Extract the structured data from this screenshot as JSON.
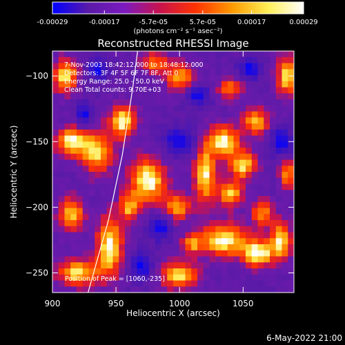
{
  "colorbar": {
    "tick_labels": [
      "-0.00029",
      "-0.00017",
      "-5.7e-05",
      "5.7e-05",
      "0.00017",
      "0.00029"
    ],
    "tick_values": [
      -0.00029,
      -0.00017,
      -5.7e-05,
      5.7e-05,
      0.00017,
      0.00029
    ],
    "range": [
      -0.00029,
      0.00029
    ],
    "units_label": "(photons cm⁻² s⁻¹ asec⁻²)",
    "colors": [
      "#0000ff",
      "#5a1aa8",
      "#7b1ac0",
      "#c8124e",
      "#ff3300",
      "#ff9900",
      "#ffee55",
      "#ffffff"
    ]
  },
  "chart_data": {
    "type": "heatmap",
    "title": "Reconstructed RHESSI Image",
    "xlabel": "Heliocentric X (arcsec)",
    "ylabel": "Heliocentric Y (arcsec)",
    "xlim": [
      900,
      1090
    ],
    "ylim": [
      -265,
      -81
    ],
    "x_ticks": [
      900,
      950,
      1000,
      1050
    ],
    "y_ticks": [
      -100,
      -150,
      -200,
      -250
    ],
    "x_tick_labels": [
      "900",
      "950",
      "1000",
      "1050"
    ],
    "y_tick_labels": [
      "−100",
      "−150",
      "−200",
      "−250"
    ],
    "annotations": [
      "7-Nov-2003 18:42:12.000 to 18:48:12.000",
      "Detectors: 3F 4F 5F 6F 7F 8F, Att 0",
      "Energy Range: 25.0 - 50.0 keV",
      "Clean  Total counts: 9.70E+03"
    ],
    "peak_label": "Position of Peak = [1060,-235]",
    "limb_points": [
      [
        928,
        -265
      ],
      [
        944,
        -210
      ],
      [
        955,
        -160
      ],
      [
        963,
        -110
      ],
      [
        967,
        -81
      ]
    ],
    "blobs": [
      {
        "x": 910,
        "y": -100,
        "sx": 10,
        "sy": 12,
        "a": 0.9
      },
      {
        "x": 915,
        "y": -150,
        "sx": 12,
        "sy": 10,
        "a": 0.95
      },
      {
        "x": 935,
        "y": -158,
        "sx": 12,
        "sy": 16,
        "a": 0.85
      },
      {
        "x": 955,
        "y": -135,
        "sx": 10,
        "sy": 12,
        "a": 0.95
      },
      {
        "x": 915,
        "y": -205,
        "sx": 10,
        "sy": 12,
        "a": 0.8
      },
      {
        "x": 945,
        "y": -230,
        "sx": 10,
        "sy": 22,
        "a": 0.95
      },
      {
        "x": 920,
        "y": -250,
        "sx": 16,
        "sy": 10,
        "a": 0.85
      },
      {
        "x": 975,
        "y": -180,
        "sx": 14,
        "sy": 16,
        "a": 1.0
      },
      {
        "x": 960,
        "y": -200,
        "sx": 8,
        "sy": 10,
        "a": 0.7
      },
      {
        "x": 998,
        "y": -200,
        "sx": 10,
        "sy": 10,
        "a": 0.75
      },
      {
        "x": 1020,
        "y": -175,
        "sx": 8,
        "sy": 22,
        "a": 0.9
      },
      {
        "x": 1035,
        "y": -150,
        "sx": 12,
        "sy": 12,
        "a": 0.95
      },
      {
        "x": 1050,
        "y": -168,
        "sx": 10,
        "sy": 10,
        "a": 0.85
      },
      {
        "x": 1040,
        "y": -190,
        "sx": 10,
        "sy": 10,
        "a": 0.8
      },
      {
        "x": 1065,
        "y": -205,
        "sx": 8,
        "sy": 10,
        "a": 0.7
      },
      {
        "x": 1035,
        "y": -225,
        "sx": 18,
        "sy": 12,
        "a": 0.95
      },
      {
        "x": 1062,
        "y": -235,
        "sx": 12,
        "sy": 10,
        "a": 1.0
      },
      {
        "x": 1080,
        "y": -225,
        "sx": 8,
        "sy": 14,
        "a": 0.9
      },
      {
        "x": 1000,
        "y": -252,
        "sx": 14,
        "sy": 10,
        "a": 0.85
      },
      {
        "x": 1010,
        "y": -228,
        "sx": 8,
        "sy": 8,
        "a": 0.6
      },
      {
        "x": 1085,
        "y": -100,
        "sx": 8,
        "sy": 14,
        "a": 0.9
      },
      {
        "x": 1060,
        "y": -135,
        "sx": 10,
        "sy": 10,
        "a": 0.75
      },
      {
        "x": 1000,
        "y": -100,
        "sx": 12,
        "sy": 10,
        "a": 0.7
      },
      {
        "x": 1040,
        "y": -110,
        "sx": 10,
        "sy": 8,
        "a": 0.6
      },
      {
        "x": 1085,
        "y": -175,
        "sx": 6,
        "sy": 10,
        "a": 0.75
      },
      {
        "x": 980,
        "y": -90,
        "sx": 10,
        "sy": 8,
        "a": 0.6
      }
    ],
    "blue_patches": [
      {
        "x": 935,
        "y": -95,
        "sx": 8,
        "sy": 8
      },
      {
        "x": 925,
        "y": -130,
        "sx": 6,
        "sy": 8
      },
      {
        "x": 1000,
        "y": -150,
        "sx": 12,
        "sy": 10
      },
      {
        "x": 985,
        "y": -215,
        "sx": 8,
        "sy": 10
      },
      {
        "x": 1080,
        "y": -150,
        "sx": 8,
        "sy": 10
      },
      {
        "x": 1015,
        "y": -115,
        "sx": 8,
        "sy": 8
      },
      {
        "x": 970,
        "y": -245,
        "sx": 8,
        "sy": 10
      },
      {
        "x": 1055,
        "y": -95,
        "sx": 8,
        "sy": 8
      }
    ]
  },
  "footer": {
    "timestamp": "6-May-2022 21:00"
  }
}
